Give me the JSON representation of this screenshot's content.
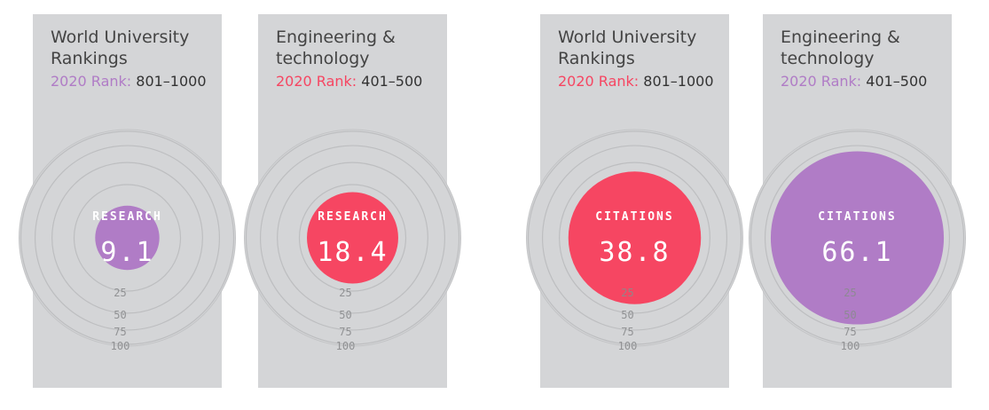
{
  "ticks": [
    25,
    50,
    75,
    100
  ],
  "cards": [
    {
      "title": "World University Rankings",
      "rank_label": "2020 Rank:",
      "rank_value": "801–1000",
      "metric": "RESEARCH",
      "value": 9.1,
      "color": "#b07cc6"
    },
    {
      "title": "Engineering & technology",
      "rank_label": "2020 Rank:",
      "rank_value": "401–500",
      "metric": "RESEARCH",
      "value": 18.4,
      "color": "#f64662"
    },
    {
      "title": "World University Rankings",
      "rank_label": "2020 Rank:",
      "rank_value": "801–1000",
      "metric": "CITATIONS",
      "value": 38.8,
      "color": "#f64662"
    },
    {
      "title": "Engineering & technology",
      "rank_label": "2020 Rank:",
      "rank_value": "401–500",
      "metric": "CITATIONS",
      "value": 66.1,
      "color": "#b07cc6"
    }
  ]
}
